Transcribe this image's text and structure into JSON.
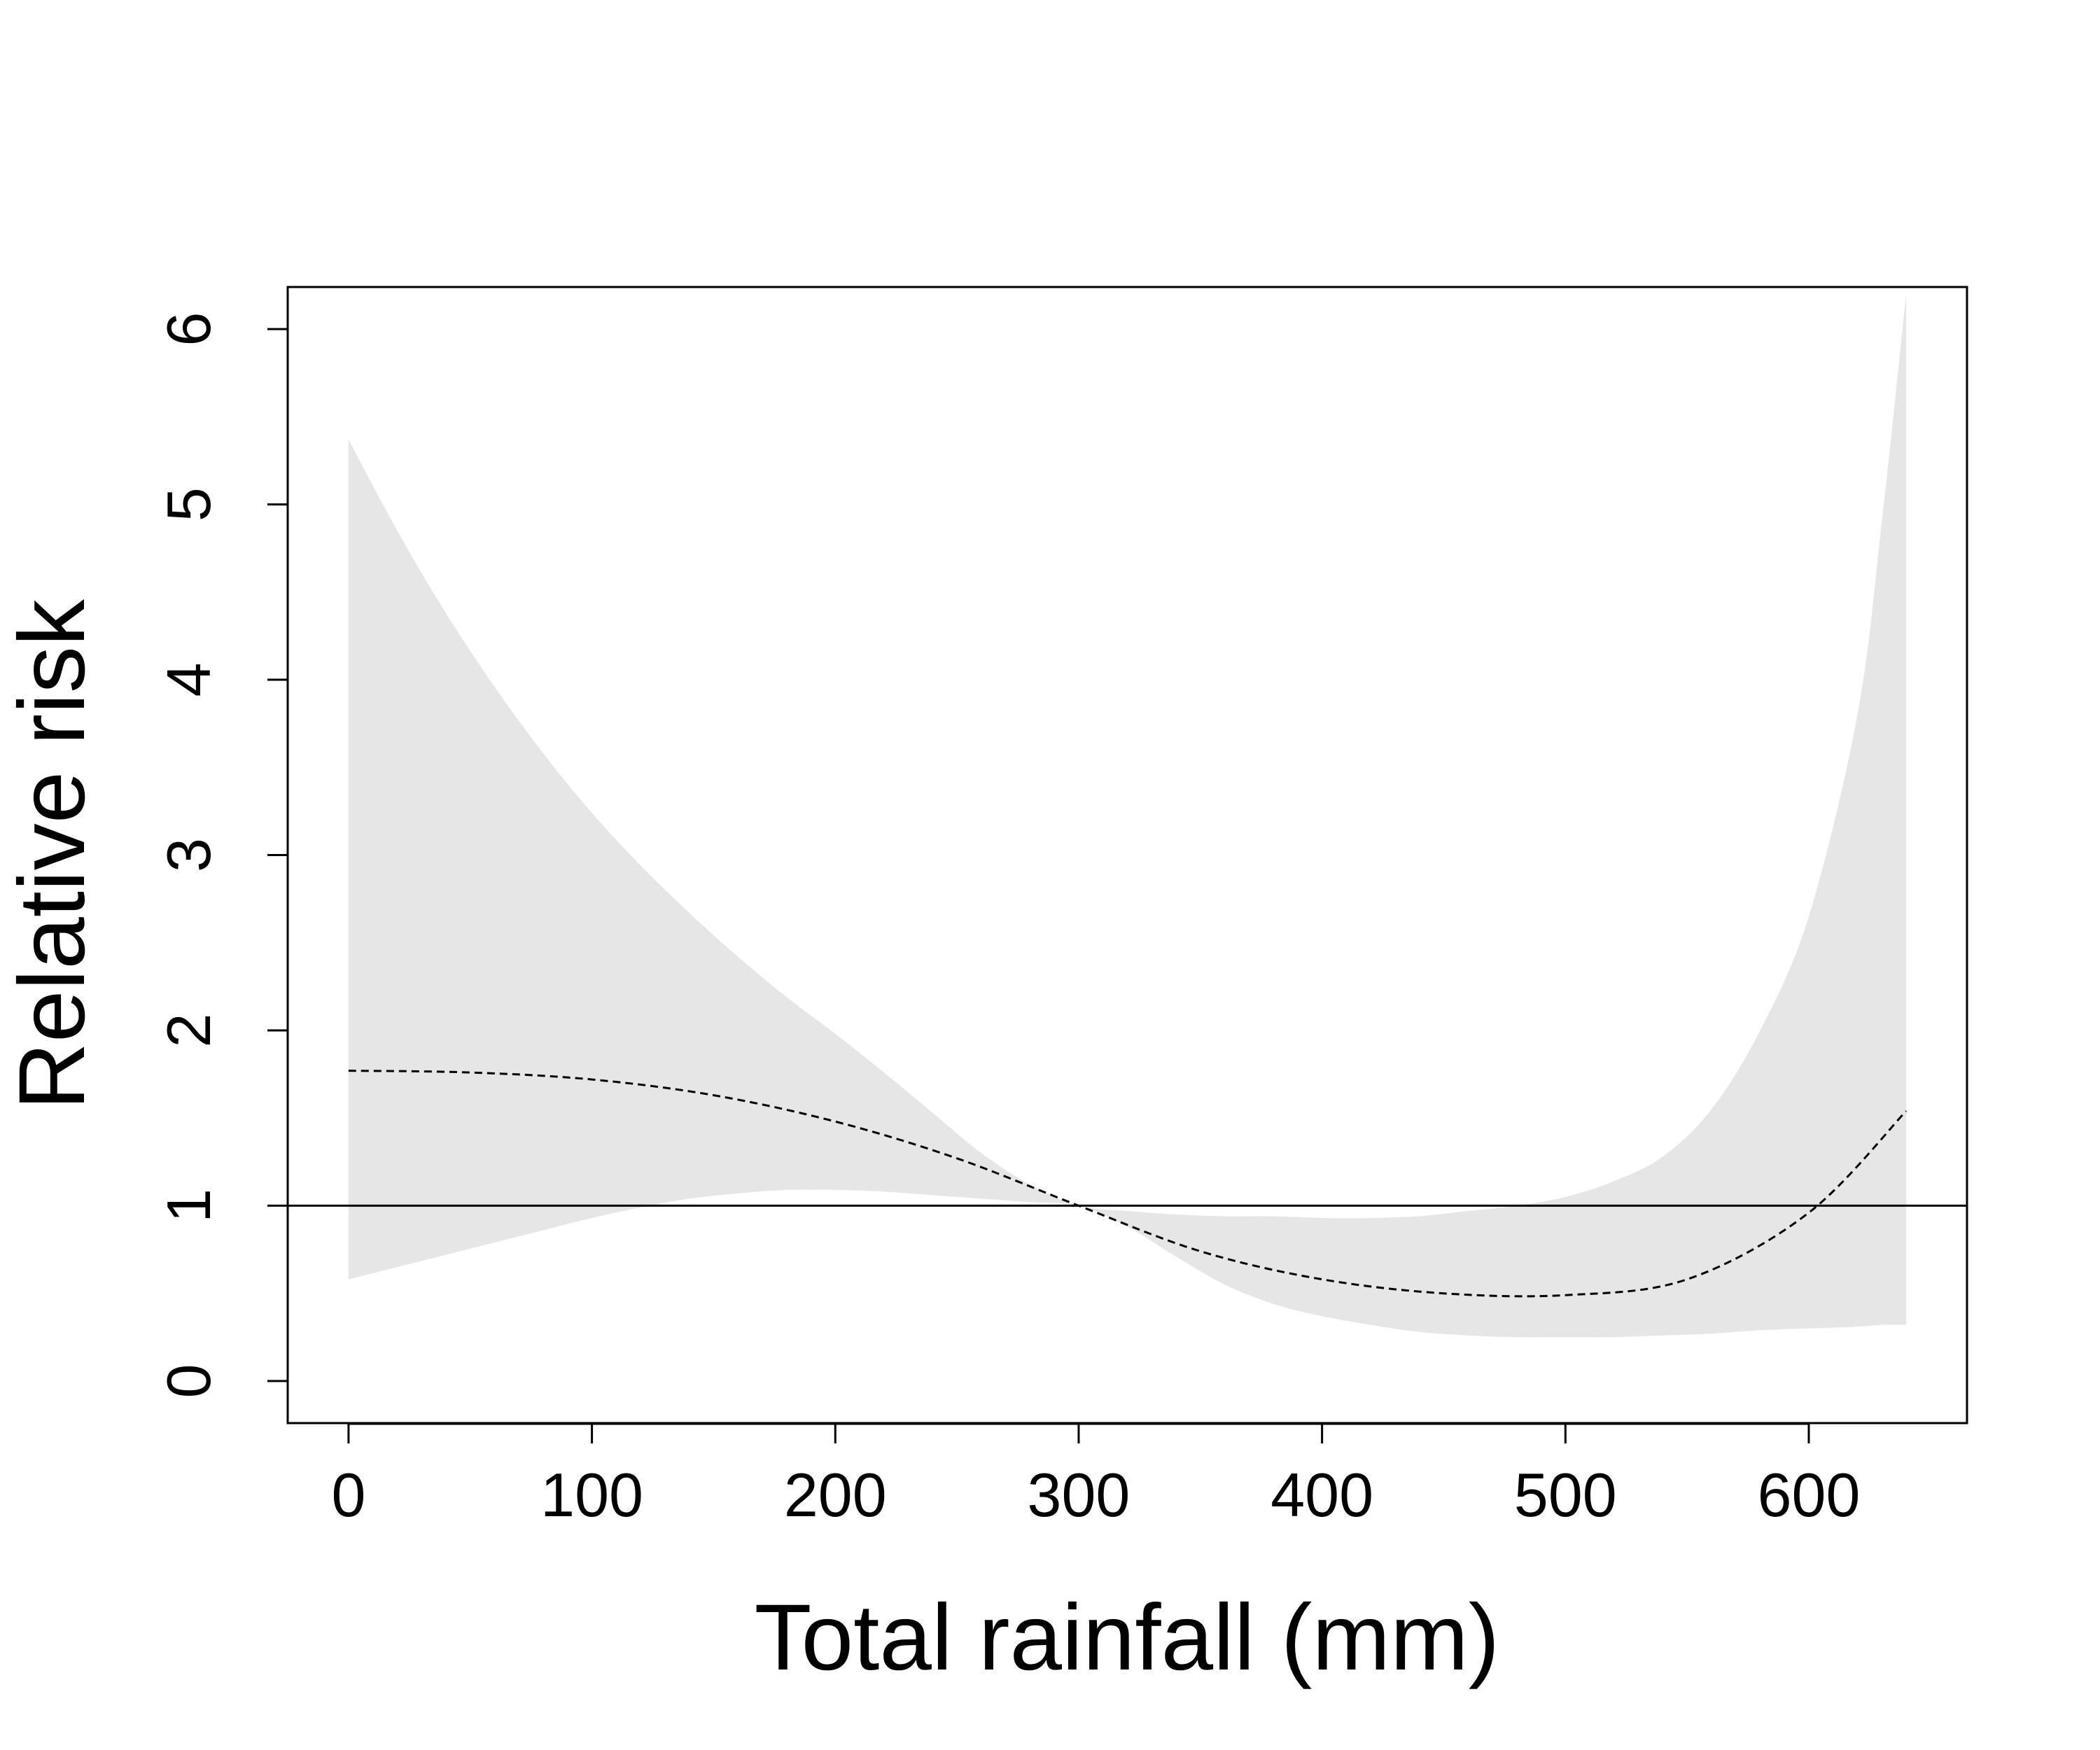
{
  "chart_data": {
    "type": "line",
    "title": "",
    "xlabel": "Total rainfall (mm)",
    "ylabel": "Relative risk",
    "xlim": [
      -25,
      665
    ],
    "ylim": [
      -0.24,
      6.24
    ],
    "x_ticks": [
      "0",
      "100",
      "200",
      "300",
      "400",
      "500",
      "600"
    ],
    "y_ticks": [
      "0",
      "1",
      "2",
      "3",
      "4",
      "5",
      "6"
    ],
    "reference_line": {
      "y": 1
    },
    "band_color": "#e6e6e6",
    "line_color": "#000000",
    "grid": false,
    "legend": "none",
    "series": [
      {
        "style": "dashed",
        "x": [
          0,
          50,
          100,
          150,
          200,
          250,
          300,
          350,
          400,
          450,
          500,
          550,
          600,
          640
        ],
        "y": [
          1.77,
          1.76,
          1.72,
          1.63,
          1.48,
          1.27,
          1.0,
          0.74,
          0.58,
          0.5,
          0.49,
          0.58,
          0.96,
          1.54
        ]
      }
    ],
    "confidence_band": {
      "x": [
        0,
        20,
        40,
        60,
        80,
        100,
        120,
        140,
        160,
        180,
        200,
        220,
        240,
        260,
        280,
        300,
        320,
        340,
        360,
        380,
        400,
        420,
        440,
        460,
        480,
        500,
        520,
        540,
        560,
        580,
        600,
        620,
        630,
        640
      ],
      "lower": [
        0.58,
        0.65,
        0.72,
        0.79,
        0.86,
        0.93,
        0.99,
        1.04,
        1.07,
        1.09,
        1.09,
        1.08,
        1.06,
        1.04,
        1.02,
        1.0,
        0.88,
        0.71,
        0.55,
        0.44,
        0.37,
        0.32,
        0.28,
        0.26,
        0.25,
        0.25,
        0.25,
        0.26,
        0.27,
        0.29,
        0.3,
        0.31,
        0.32,
        0.32
      ],
      "upper": [
        5.37,
        4.85,
        4.38,
        3.96,
        3.58,
        3.24,
        2.94,
        2.67,
        2.42,
        2.19,
        1.98,
        1.76,
        1.53,
        1.3,
        1.12,
        1.0,
        0.97,
        0.95,
        0.94,
        0.94,
        0.93,
        0.93,
        0.94,
        0.97,
        1.0,
        1.05,
        1.14,
        1.28,
        1.55,
        2.0,
        2.65,
        3.8,
        4.9,
        6.2
      ]
    }
  }
}
